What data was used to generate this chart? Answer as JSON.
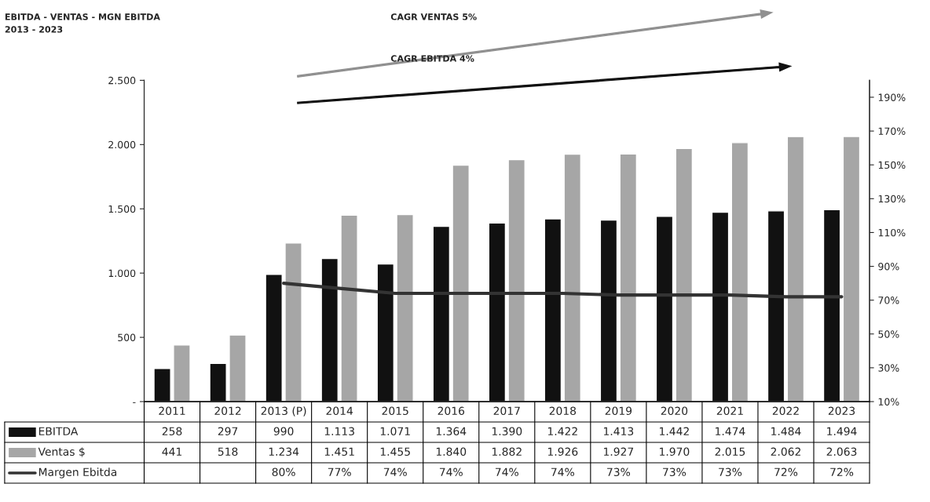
{
  "chart_data": {
    "type": "bar",
    "title": "EBITDA - VENTAS - MGN EBITDA",
    "subtitle": "2013 - 2023",
    "annotations": [
      "CAGR VENTAS 5%",
      "CAGR EBITDA 4%"
    ],
    "categories": [
      "2011",
      "2012",
      "2013 (P)",
      "2014",
      "2015",
      "2016",
      "2017",
      "2018",
      "2019",
      "2020",
      "2021",
      "2022",
      "2023"
    ],
    "series": [
      {
        "name": "EBITDA",
        "color": "#111111",
        "values": [
          258,
          297,
          990,
          1113,
          1071,
          1364,
          1390,
          1422,
          1413,
          1442,
          1474,
          1484,
          1494
        ],
        "value_labels": [
          "258",
          "297",
          "990",
          "1.113",
          "1.071",
          "1.364",
          "1.390",
          "1.422",
          "1.413",
          "1.442",
          "1.474",
          "1.484",
          "1.494"
        ]
      },
      {
        "name": "Ventas $",
        "color": "#a6a6a6",
        "values": [
          441,
          518,
          1234,
          1451,
          1455,
          1840,
          1882,
          1926,
          1927,
          1970,
          2015,
          2062,
          2063
        ],
        "value_labels": [
          "441",
          "518",
          "1.234",
          "1.451",
          "1.455",
          "1.840",
          "1.882",
          "1.926",
          "1.927",
          "1.970",
          "2.015",
          "2.062",
          "2.063"
        ]
      },
      {
        "name": "Margen Ebitda",
        "type": "line",
        "axis": "y2",
        "color": "#333333",
        "values": [
          null,
          null,
          80,
          77,
          74,
          74,
          74,
          74,
          73,
          73,
          73,
          72,
          72
        ],
        "value_labels": [
          null,
          null,
          "80%",
          "77%",
          "74%",
          "74%",
          "74%",
          "74%",
          "73%",
          "73%",
          "73%",
          "72%",
          "72%"
        ]
      }
    ],
    "ylim": [
      0,
      2500
    ],
    "yticks": [
      {
        "value": 0,
        "label": "-"
      },
      500,
      {
        "value": 1000,
        "label": "1.000"
      },
      {
        "value": 1500,
        "label": "1.500"
      },
      {
        "value": 2000,
        "label": "2.000"
      },
      {
        "value": 2500,
        "label": "2.500"
      }
    ],
    "y2lim": [
      10,
      200
    ],
    "y2ticks": [
      {
        "value": 10,
        "label": "10%"
      },
      {
        "value": 30,
        "label": "30%"
      },
      {
        "value": 50,
        "label": "50%"
      },
      {
        "value": 70,
        "label": "70%"
      },
      {
        "value": 90,
        "label": "90%"
      },
      {
        "value": 110,
        "label": "110%"
      },
      {
        "value": 130,
        "label": "130%"
      },
      {
        "value": 150,
        "label": "150%"
      },
      {
        "value": 170,
        "label": "170%"
      },
      {
        "value": 190,
        "label": "190%"
      }
    ],
    "grid": false,
    "legend": "bottom left",
    "line_style": "solid",
    "marker": "none"
  }
}
